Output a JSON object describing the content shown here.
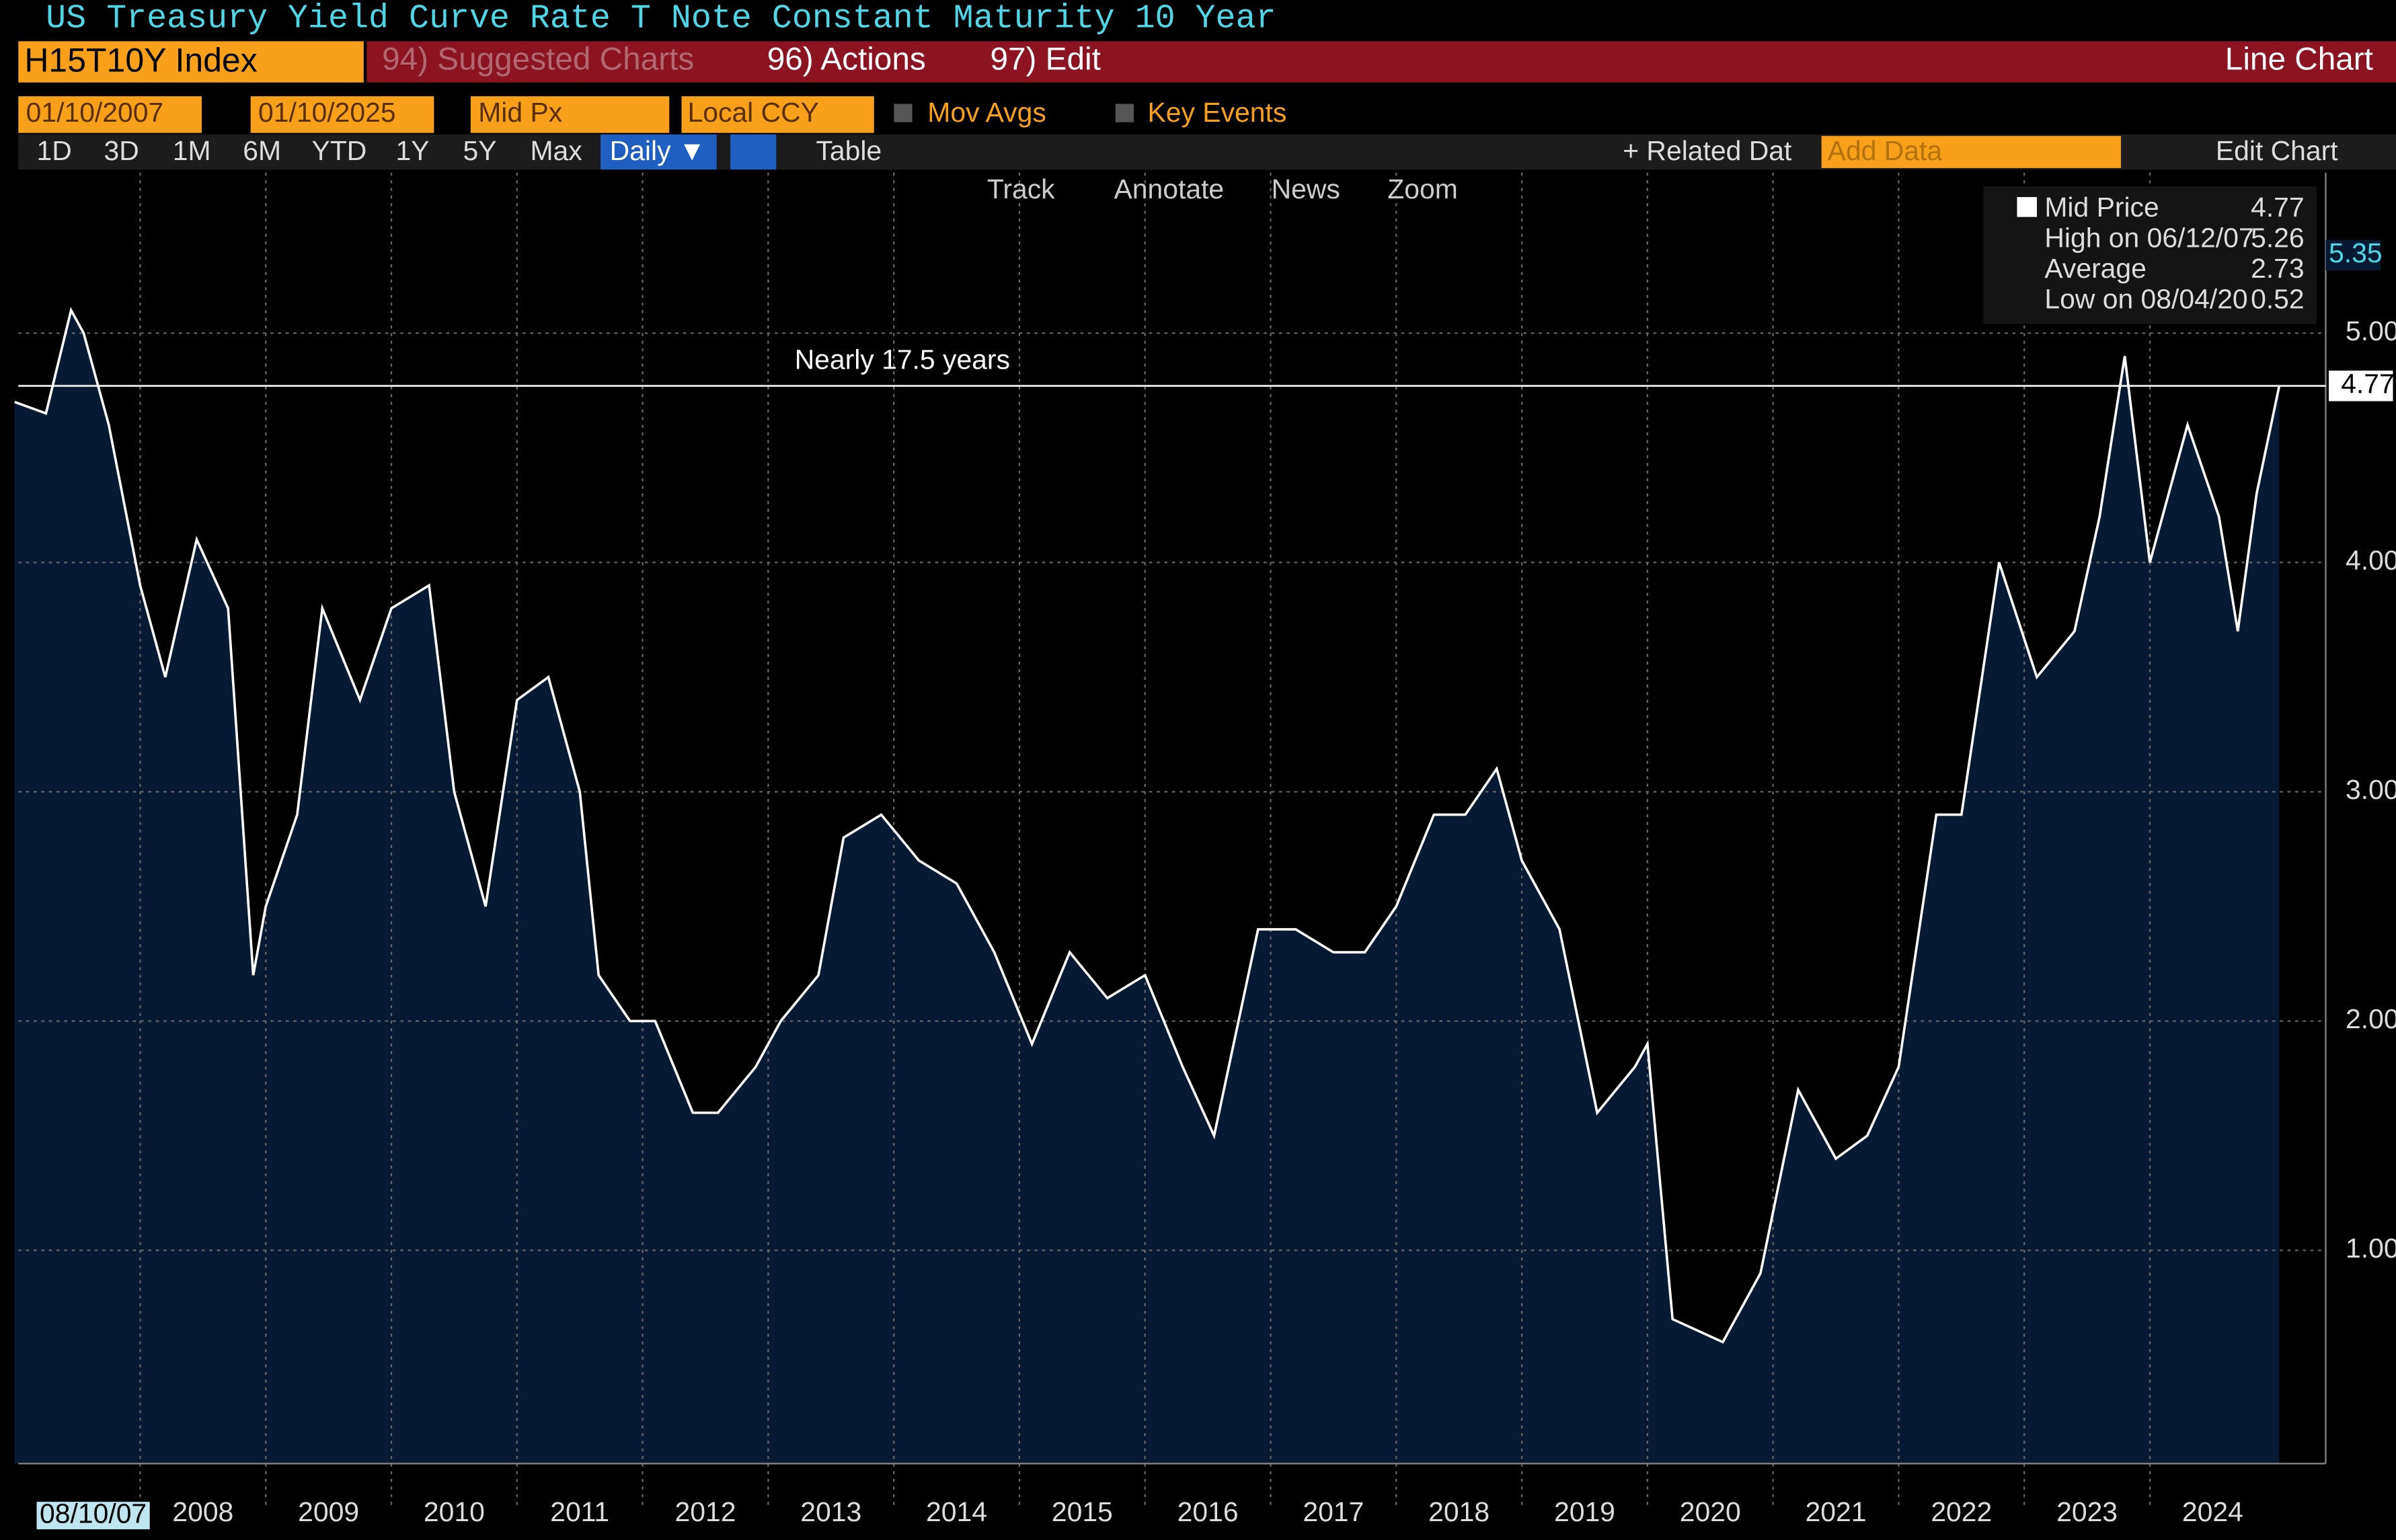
{
  "header": {
    "title": "US Treasury Yield Curve Rate T Note Constant Maturity 10 Year",
    "ticker": "H15T10Y Index",
    "suggested": "94) Suggested Charts",
    "actions": "96) Actions",
    "edit": "97) Edit",
    "chart_kind": "Line Chart"
  },
  "toolbar": {
    "start_date": "01/10/2007",
    "end_date": "01/10/2025",
    "field": "Mid Px",
    "currency": "Local CCY",
    "mov_avgs": "Mov Avgs",
    "key_events": "Key Events",
    "periods": [
      "1D",
      "3D",
      "1M",
      "6M",
      "YTD",
      "1Y",
      "5Y",
      "Max"
    ],
    "frequency": "Daily ▼",
    "table": "Table",
    "related": "+ Related Dat",
    "add_data": "Add Data",
    "edit_chart": "Edit Chart",
    "tools": [
      "Track",
      "Annotate",
      "News",
      "Zoom"
    ]
  },
  "chart_data": {
    "type": "line",
    "color": "#ffffff",
    "fill": "#061a33",
    "x": [
      2007.0,
      2007.25,
      2007.45,
      2007.55,
      2007.75,
      2008.0,
      2008.2,
      2008.45,
      2008.7,
      2008.9,
      2009.0,
      2009.25,
      2009.45,
      2009.75,
      2010.0,
      2010.3,
      2010.5,
      2010.75,
      2011.0,
      2011.25,
      2011.5,
      2011.65,
      2011.9,
      2012.1,
      2012.4,
      2012.6,
      2012.9,
      2013.1,
      2013.4,
      2013.6,
      2013.9,
      2014.2,
      2014.5,
      2014.8,
      2015.1,
      2015.4,
      2015.7,
      2016.0,
      2016.3,
      2016.55,
      2016.9,
      2017.2,
      2017.5,
      2017.75,
      2018.0,
      2018.3,
      2018.55,
      2018.8,
      2019.0,
      2019.3,
      2019.6,
      2019.9,
      2020.0,
      2020.2,
      2020.6,
      2020.9,
      2021.2,
      2021.5,
      2021.75,
      2022.0,
      2022.3,
      2022.5,
      2022.8,
      2023.1,
      2023.4,
      2023.6,
      2023.8,
      2024.0,
      2024.3,
      2024.55,
      2024.7,
      2024.85,
      2025.03
    ],
    "values": [
      4.7,
      4.65,
      5.1,
      5.0,
      4.6,
      3.9,
      3.5,
      4.1,
      3.8,
      2.2,
      2.5,
      2.9,
      3.8,
      3.4,
      3.8,
      3.9,
      3.0,
      2.5,
      3.4,
      3.5,
      3.0,
      2.2,
      2.0,
      2.0,
      1.6,
      1.6,
      1.8,
      2.0,
      2.2,
      2.8,
      2.9,
      2.7,
      2.6,
      2.3,
      1.9,
      2.3,
      2.1,
      2.2,
      1.8,
      1.5,
      2.4,
      2.4,
      2.3,
      2.3,
      2.5,
      2.9,
      2.9,
      3.1,
      2.7,
      2.4,
      1.6,
      1.8,
      1.9,
      0.7,
      0.6,
      0.9,
      1.7,
      1.4,
      1.5,
      1.8,
      2.9,
      2.9,
      4.0,
      3.5,
      3.7,
      4.2,
      4.9,
      4.0,
      4.6,
      4.2,
      3.7,
      4.3,
      4.77
    ],
    "xlim": [
      2007.03,
      2025.4
    ],
    "xticks": [
      2008,
      2009,
      2010,
      2011,
      2012,
      2013,
      2014,
      2015,
      2016,
      2017,
      2018,
      2019,
      2020,
      2021,
      2022,
      2023,
      2024
    ],
    "start_label": "08/10/07",
    "ylim": [
      0.07,
      5.7
    ],
    "yticks": [
      {
        "value": 1,
        "label": "1.00"
      },
      {
        "value": 2,
        "label": "2.00"
      },
      {
        "value": 3,
        "label": "3.00"
      },
      {
        "value": 4,
        "label": "4.00"
      },
      {
        "value": 5,
        "label": "5.00"
      }
    ],
    "grid": true,
    "hline": 4.77,
    "annotation": "Nearly 17.5 years",
    "marker_label": "5.35",
    "legend": [
      {
        "name": "Mid Price",
        "value": "4.77"
      },
      {
        "name": "High on 06/12/07",
        "value": "5.26"
      },
      {
        "name": "Average",
        "value": "2.73"
      },
      {
        "name": "Low on 08/04/20",
        "value": "0.52"
      }
    ]
  }
}
